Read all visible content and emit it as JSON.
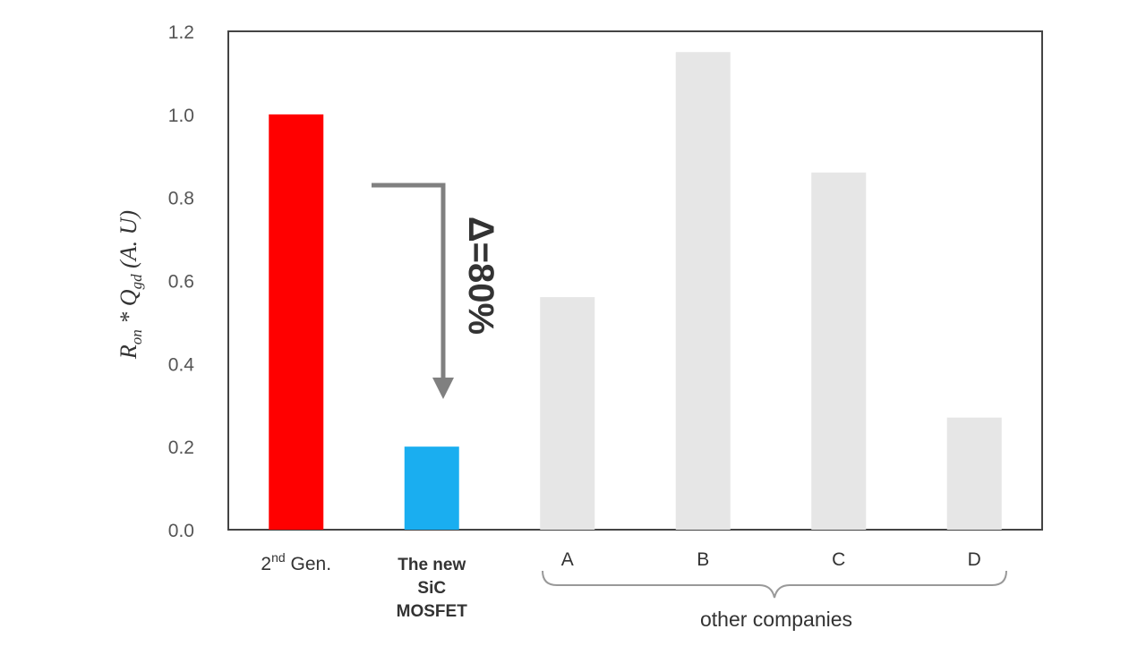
{
  "chart_data": {
    "type": "bar",
    "title": "",
    "xlabel": "",
    "ylabel": {
      "r": "R",
      "r_sub": "on",
      "star": " * ",
      "q": "Q",
      "q_sub": "gd",
      "unit": " (A. U)"
    },
    "ylim": [
      0,
      1.2
    ],
    "yticks": [
      "0.0",
      "0.2",
      "0.4",
      "0.6",
      "0.8",
      "1.0",
      "1.2"
    ],
    "yticks_values": [
      0,
      0.2,
      0.4,
      0.6,
      0.8,
      1.0,
      1.2
    ],
    "grid": false,
    "categories": [
      {
        "lines": [
          "2nd Gen."
        ],
        "value": 1.0,
        "color": "#ff0000"
      },
      {
        "lines": [
          "The new",
          "SiC",
          "MOSFET"
        ],
        "value": 0.2,
        "color": "#1aaef0"
      },
      {
        "lines": [
          "A"
        ],
        "value": 0.56,
        "color": "#e6e6e6"
      },
      {
        "lines": [
          "B"
        ],
        "value": 1.15,
        "color": "#e6e6e6"
      },
      {
        "lines": [
          "C"
        ],
        "value": 0.86,
        "color": "#e6e6e6"
      },
      {
        "lines": [
          "D"
        ],
        "value": 0.27,
        "color": "#e6e6e6"
      }
    ],
    "first_label": {
      "main": "2",
      "sup": "nd",
      "rest": " Gen."
    },
    "annotation": "Δ=80%",
    "group_label": "other companies"
  }
}
